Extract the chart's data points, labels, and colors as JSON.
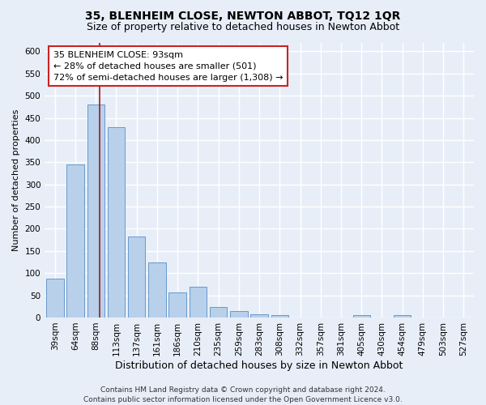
{
  "title": "35, BLENHEIM CLOSE, NEWTON ABBOT, TQ12 1QR",
  "subtitle": "Size of property relative to detached houses in Newton Abbot",
  "xlabel": "Distribution of detached houses by size in Newton Abbot",
  "ylabel": "Number of detached properties",
  "footer_line1": "Contains HM Land Registry data © Crown copyright and database right 2024.",
  "footer_line2": "Contains public sector information licensed under the Open Government Licence v3.0.",
  "bar_labels": [
    "39sqm",
    "64sqm",
    "88sqm",
    "113sqm",
    "137sqm",
    "161sqm",
    "186sqm",
    "210sqm",
    "235sqm",
    "259sqm",
    "283sqm",
    "308sqm",
    "332sqm",
    "357sqm",
    "381sqm",
    "405sqm",
    "430sqm",
    "454sqm",
    "479sqm",
    "503sqm",
    "527sqm"
  ],
  "bar_values": [
    88,
    345,
    480,
    430,
    183,
    125,
    57,
    69,
    24,
    14,
    8,
    5,
    0,
    0,
    0,
    5,
    0,
    5,
    0,
    0,
    0
  ],
  "bar_color": "#b8d0ea",
  "bar_edge_color": "#6699cc",
  "annotation_line1": "35 BLENHEIM CLOSE: 93sqm",
  "annotation_line2": "← 28% of detached houses are smaller (501)",
  "annotation_line3": "72% of semi-detached houses are larger (1,308) →",
  "vline_x": 2.18,
  "vline_color": "#9b1c1c",
  "ylim": [
    0,
    620
  ],
  "yticks": [
    0,
    50,
    100,
    150,
    200,
    250,
    300,
    350,
    400,
    450,
    500,
    550,
    600
  ],
  "background_color": "#e8eef8",
  "plot_bg_color": "#e8eef8",
  "annotation_box_facecolor": "#ffffff",
  "annotation_box_edgecolor": "#cc2222",
  "title_fontsize": 10,
  "subtitle_fontsize": 9,
  "xlabel_fontsize": 9,
  "ylabel_fontsize": 8,
  "tick_fontsize": 7.5,
  "annotation_fontsize": 8,
  "footer_fontsize": 6.5,
  "grid_color": "#ffffff",
  "grid_linewidth": 1.0
}
